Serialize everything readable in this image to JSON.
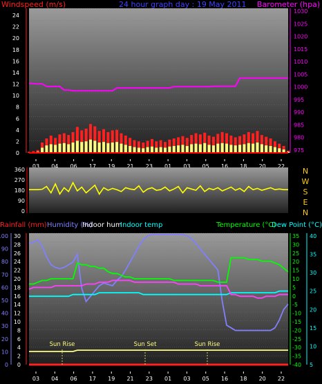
{
  "chart_data": [
    {
      "type": "line",
      "title": "24 hour graph day : 19 May 2011",
      "ylabel_left": "Windspeed (m/s)",
      "ylabel_right": "Barometer (hpa)",
      "x_ticks": [
        "03",
        "04",
        "06",
        "17",
        "19",
        "21",
        "23",
        "01",
        "03",
        "05",
        "16",
        "18",
        "20",
        "22"
      ],
      "y_left_ticks": [
        "24",
        "22",
        "20",
        "18",
        "16",
        "14",
        "12",
        "10",
        "8",
        "6",
        "4",
        "2",
        "0"
      ],
      "y_right_ticks": [
        "1030",
        "1025",
        "1020",
        "1015",
        "1010",
        "1005",
        "1000",
        "995",
        "990",
        "985",
        "980",
        "975"
      ],
      "ylim_left": [
        0,
        25
      ],
      "ylim_right": [
        974,
        1031
      ],
      "series": [
        {
          "name": "Barometer",
          "axis": "right",
          "color": "#ff00ff",
          "values": [
            1001.5,
            1001.3,
            1001.2,
            1001.2,
            1000.2,
            1000.2,
            1000.2,
            1000.2,
            998.8,
            998.8,
            998.5,
            998.5,
            998.5,
            998.5,
            998.5,
            998.5,
            998.5,
            998.5,
            998.5,
            998.5,
            999.6,
            999.6,
            999.6,
            999.6,
            999.6,
            999.6,
            999.6,
            999.6,
            999.6,
            999.6,
            999.6,
            999.6,
            999.6,
            1000.1,
            1000.1,
            1000.1,
            1000.1,
            1000.1,
            1000.1,
            1000.1,
            1000.1,
            1000.1,
            1000.3,
            1000.3,
            1000.3,
            1000.3,
            1000.3,
            1000.3,
            1003.5,
            1003.5,
            1003.5,
            1003.5,
            1003.5,
            1003.5,
            1003.5,
            1003.5,
            1003.5,
            1003.5,
            1003.5,
            1003.5
          ]
        },
        {
          "name": "Wind gust",
          "axis": "left",
          "color": "#ff2020",
          "values": [
            0.2,
            0.3,
            0.5,
            1.8,
            2.5,
            3.0,
            2.6,
            3.2,
            3.4,
            3.1,
            3.6,
            4.5,
            3.9,
            4.2,
            5.0,
            4.6,
            3.8,
            4.1,
            3.6,
            3.9,
            4.0,
            3.4,
            3.0,
            2.6,
            2.2,
            2.0,
            1.8,
            2.1,
            2.4,
            2.0,
            2.2,
            1.9,
            2.3,
            2.5,
            2.7,
            2.9,
            2.6,
            3.1,
            3.4,
            3.2,
            3.5,
            3.0,
            2.8,
            3.3,
            3.6,
            3.4,
            3.0,
            2.7,
            2.9,
            3.2,
            3.6,
            3.4,
            3.8,
            3.1,
            2.8,
            2.5,
            2.0,
            1.6,
            1.2,
            0.4
          ]
        },
        {
          "name": "Wind average",
          "axis": "left",
          "color": "#ffff80",
          "values": [
            0.0,
            0.1,
            0.2,
            0.9,
            1.3,
            1.5,
            1.4,
            1.6,
            1.7,
            1.5,
            1.8,
            2.1,
            1.9,
            2.0,
            2.3,
            2.1,
            1.8,
            1.9,
            1.7,
            1.8,
            1.9,
            1.6,
            1.4,
            1.2,
            1.0,
            0.9,
            0.8,
            1.0,
            1.1,
            0.9,
            1.0,
            0.9,
            1.1,
            1.2,
            1.3,
            1.4,
            1.2,
            1.5,
            1.6,
            1.5,
            1.7,
            1.4,
            1.3,
            1.6,
            1.7,
            1.6,
            1.4,
            1.3,
            1.4,
            1.5,
            1.7,
            1.6,
            1.8,
            1.5,
            1.3,
            1.2,
            1.0,
            0.8,
            0.6,
            0.2
          ]
        }
      ]
    },
    {
      "type": "line",
      "title": "",
      "ylabel_right": [
        "N",
        "W",
        "S",
        "E",
        "N"
      ],
      "x_ticks": [],
      "y_left_ticks": [
        "360",
        "270",
        "180",
        "90",
        "0"
      ],
      "ylim": [
        0,
        360
      ],
      "series": [
        {
          "name": "Wind direction",
          "color": "#ffff00",
          "values": [
            185,
            185,
            185,
            188,
            210,
            160,
            230,
            150,
            200,
            170,
            240,
            175,
            205,
            160,
            190,
            220,
            150,
            200,
            180,
            195,
            185,
            170,
            200,
            190,
            185,
            215,
            165,
            190,
            200,
            180,
            185,
            205,
            175,
            190,
            210,
            160,
            200,
            190,
            180,
            215,
            170,
            195,
            185,
            200,
            175,
            190,
            205,
            180,
            195,
            170,
            210,
            185,
            195,
            180,
            190,
            200,
            185,
            190,
            185,
            185
          ]
        }
      ]
    },
    {
      "type": "line",
      "title": "",
      "labels_top": [
        "Rainfall (mm)",
        "Humidity (%)",
        "Indoor hum",
        "Indoor temp",
        "Temperature (°C)",
        "Dew Point (°C)"
      ],
      "x_ticks": [
        "03",
        "04",
        "06",
        "17",
        "19",
        "21",
        "23",
        "01",
        "03",
        "05",
        "16",
        "18",
        "20",
        "22"
      ],
      "y_humidity_ticks": [
        "100",
        "90",
        "80",
        "70",
        "60",
        "50",
        "40",
        "30",
        "20",
        "10",
        "0"
      ],
      "y_rain_ticks": [
        "30",
        "28",
        "26",
        "24",
        "22",
        "20",
        "18",
        "16",
        "14",
        "12",
        "10",
        "8",
        "6",
        "4",
        "2",
        "0"
      ],
      "y_temp_ticks": [
        "35",
        "30",
        "25",
        "20",
        "15",
        "10",
        "5",
        "0",
        "-5",
        "-10",
        "-15",
        "-20",
        "-25",
        "-30",
        "-35",
        "-40"
      ],
      "y_dew_ticks": [
        "40",
        "35",
        "30",
        "25",
        "20",
        "15",
        "10",
        "5"
      ],
      "annotations": [
        "Sun Rise",
        "Sun Set",
        "Sun Rise"
      ],
      "ylim_humidity": [
        0,
        100
      ],
      "ylim_temperature": [
        -40,
        35
      ],
      "series": [
        {
          "name": "Humidity",
          "axis": "humidity",
          "color": "#8080ff",
          "values": [
            92,
            93,
            95,
            90,
            82,
            76,
            74,
            73,
            74,
            76,
            78,
            84,
            58,
            48,
            52,
            56,
            60,
            62,
            61,
            60,
            64,
            67,
            72,
            78,
            84,
            90,
            95,
            98,
            99,
            99,
            99,
            99,
            99,
            99,
            99,
            99,
            98,
            96,
            92,
            88,
            84,
            80,
            76,
            72,
            48,
            30,
            28,
            26,
            26,
            26,
            26,
            26,
            26,
            26,
            26,
            26,
            28,
            34,
            42,
            46
          ]
        },
        {
          "name": "Temperature",
          "axis": "temperature",
          "color": "#00ff00",
          "values": [
            6,
            6,
            7,
            8,
            8,
            9,
            9,
            9,
            9,
            9,
            9,
            18,
            17,
            17,
            16,
            16,
            15,
            15,
            13,
            12,
            12,
            11,
            10,
            10,
            9,
            9,
            9,
            9,
            9,
            9,
            9,
            9,
            9,
            8,
            8,
            8,
            8,
            8,
            8,
            8,
            8,
            8,
            8,
            7,
            7,
            7,
            21,
            21,
            21,
            21,
            20,
            20,
            20,
            19,
            19,
            19,
            18,
            17,
            15,
            13
          ]
        },
        {
          "name": "Indoor temp",
          "axis": "temperature",
          "color": "#00ffff",
          "values": [
            -1,
            -1,
            -1,
            -1,
            -1,
            -1,
            -1,
            -1,
            -1,
            -1,
            0,
            0,
            0,
            0,
            0,
            0,
            1,
            1,
            1,
            1,
            1,
            1,
            1,
            1,
            1,
            1,
            0,
            0,
            0,
            0,
            0,
            0,
            0,
            0,
            0,
            0,
            0,
            0,
            0,
            0,
            0,
            0,
            0,
            0,
            0,
            0,
            1,
            1,
            1,
            1,
            1,
            1,
            1,
            1,
            1,
            1,
            1,
            2,
            2,
            2
          ]
        },
        {
          "name": "Dew Point",
          "axis": "temperature",
          "color": "#ff40ff",
          "values": [
            3,
            4,
            4,
            4,
            4,
            4,
            5,
            5,
            5,
            5,
            5,
            5,
            5,
            6,
            6,
            6,
            7,
            7,
            7,
            8,
            8,
            8,
            8,
            8,
            7,
            7,
            7,
            7,
            7,
            7,
            7,
            7,
            7,
            7,
            6,
            6,
            6,
            6,
            6,
            5,
            5,
            5,
            5,
            5,
            5,
            5,
            0,
            0,
            -1,
            -1,
            -1,
            -1,
            -2,
            -2,
            -1,
            -1,
            -1,
            0,
            0,
            0
          ]
        },
        {
          "name": "Indoor hum",
          "axis": "humidity",
          "color": "#ffff80",
          "values": [
            10,
            10,
            10,
            10,
            10,
            10,
            10,
            10,
            10,
            10,
            10,
            11,
            11,
            11,
            11,
            11,
            11,
            11,
            11,
            11,
            11,
            11,
            11,
            11,
            11,
            11,
            11,
            11,
            11,
            11,
            11,
            11,
            11,
            11,
            11,
            11,
            11,
            11,
            11,
            11,
            11,
            11,
            11,
            11,
            11,
            11,
            11,
            11,
            11,
            11,
            11,
            11,
            11,
            11,
            11,
            11,
            11,
            11,
            11,
            11
          ]
        },
        {
          "name": "Rainfall",
          "axis": "rain",
          "color": "#ff2020",
          "values": [
            0,
            0,
            0,
            0,
            0,
            0,
            0,
            0,
            0,
            0,
            0,
            0,
            0,
            0,
            0,
            0,
            0,
            0,
            0,
            0,
            0,
            0,
            0,
            0,
            0,
            0,
            0,
            0,
            0,
            0,
            0,
            0,
            0,
            0,
            0,
            0,
            0,
            0,
            0,
            0,
            0,
            0,
            0,
            0,
            0,
            0,
            0,
            0,
            0,
            0,
            0,
            0,
            0,
            0,
            0,
            0,
            0,
            0,
            0,
            0
          ]
        }
      ]
    }
  ],
  "colors": {
    "windspeed_label": "#ff2020",
    "barometer_label": "#ff00ff",
    "title": "#4040ff",
    "compass": "#ffcc00",
    "rainfall_label": "#ff2020",
    "humidity_label": "#8080ff",
    "indoor_hum_label": "#ffffff",
    "indoor_temp_label": "#00ffff",
    "temperature_label": "#00ff00",
    "dew_label": "#00ffff",
    "sun": "#ffff80",
    "axis_line": "#ff0000",
    "tick_text": "#ffffff"
  }
}
